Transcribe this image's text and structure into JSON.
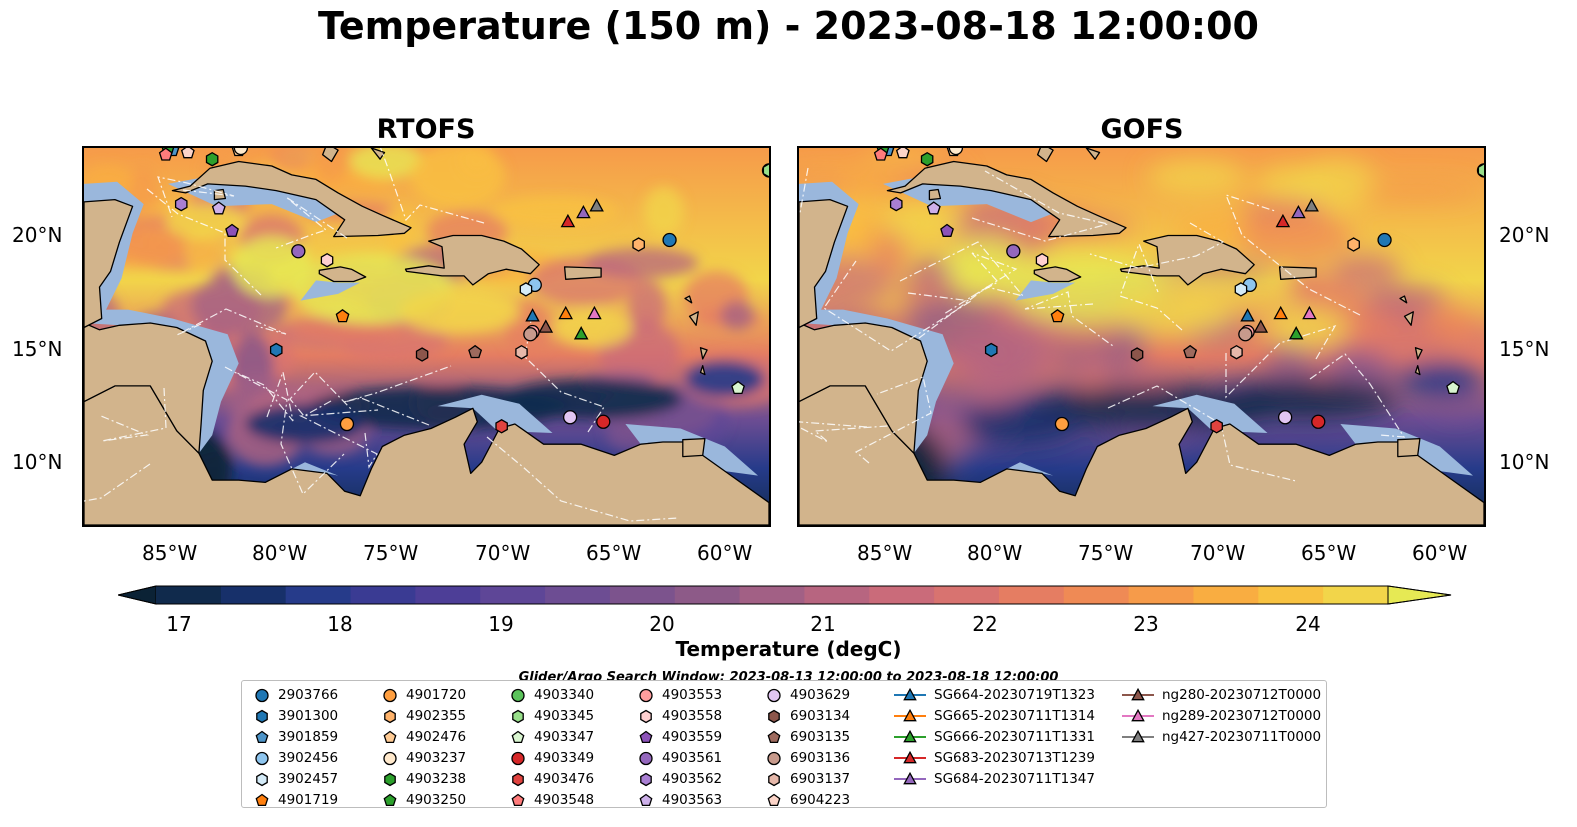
{
  "title": "Temperature (150 m) - 2023-08-18 12:00:00",
  "panels": [
    {
      "title": "RTOFS"
    },
    {
      "title": "GOFS"
    }
  ],
  "axes": {
    "lat_ticks": [
      "20°N",
      "15°N",
      "10°N"
    ],
    "lon_ticks": [
      "85°W",
      "80°W",
      "75°W",
      "70°W",
      "65°W",
      "60°W"
    ]
  },
  "colorbar": {
    "label": "Temperature (degC)",
    "ticks": [
      "17",
      "18",
      "19",
      "20",
      "21",
      "22",
      "23",
      "24"
    ],
    "range": [
      16.75,
      24.5
    ],
    "extend": "both",
    "colors": [
      "#0b2235",
      "#102a4c",
      "#17306a",
      "#263b8a",
      "#3a3b93",
      "#4d3e97",
      "#5e4697",
      "#6d4d93",
      "#7c538d",
      "#8d5a88",
      "#a26085",
      "#b76580",
      "#ca6b7a",
      "#d87370",
      "#e57d62",
      "#ef8a55",
      "#f69b4a",
      "#f9ad41",
      "#f8c241",
      "#f2d54a",
      "#e6e954"
    ]
  },
  "search_window": "Glider/Argo Search Window: 2023-08-13 12:00:00 to 2023-08-18 12:00:00",
  "legend": [
    {
      "label": "2903766",
      "marker": "circle",
      "color": "#1f77b4"
    },
    {
      "label": "3901300",
      "marker": "hexagon",
      "color": "#1f77b4"
    },
    {
      "label": "3901859",
      "marker": "pentagon",
      "color": "#4d94c8"
    },
    {
      "label": "3902456",
      "marker": "circle",
      "color": "#8ec5ee"
    },
    {
      "label": "3902457",
      "marker": "hexagon",
      "color": "#d4ebf8"
    },
    {
      "label": "4901719",
      "marker": "pentagon",
      "color": "#ff7f0e"
    },
    {
      "label": "4901720",
      "marker": "circle",
      "color": "#ff9f40"
    },
    {
      "label": "4902355",
      "marker": "hexagon",
      "color": "#ffb36b"
    },
    {
      "label": "4902476",
      "marker": "pentagon",
      "color": "#ffcb94"
    },
    {
      "label": "4903237",
      "marker": "circle",
      "color": "#ffe9cc"
    },
    {
      "label": "4903238",
      "marker": "hexagon",
      "color": "#2ca02c"
    },
    {
      "label": "4903250",
      "marker": "pentagon",
      "color": "#2ca02c"
    },
    {
      "label": "4903340",
      "marker": "circle",
      "color": "#5bc35b"
    },
    {
      "label": "4903345",
      "marker": "hexagon",
      "color": "#98df8a"
    },
    {
      "label": "4903347",
      "marker": "pentagon",
      "color": "#d9f5d0"
    },
    {
      "label": "4903349",
      "marker": "circle",
      "color": "#d62728"
    },
    {
      "label": "4903476",
      "marker": "hexagon",
      "color": "#e0433f"
    },
    {
      "label": "4903548",
      "marker": "pentagon",
      "color": "#ff7b7b"
    },
    {
      "label": "4903553",
      "marker": "circle",
      "color": "#ff9e9e"
    },
    {
      "label": "4903558",
      "marker": "hexagon",
      "color": "#ffd0d0"
    },
    {
      "label": "4903559",
      "marker": "pentagon",
      "color": "#8c52b8"
    },
    {
      "label": "4903561",
      "marker": "circle",
      "color": "#9467bd"
    },
    {
      "label": "4903562",
      "marker": "hexagon",
      "color": "#a97fd3"
    },
    {
      "label": "4903563",
      "marker": "pentagon",
      "color": "#cdb0ea"
    },
    {
      "label": "4903629",
      "marker": "circle",
      "color": "#e2c6f2"
    },
    {
      "label": "6903134",
      "marker": "hexagon",
      "color": "#8c564b"
    },
    {
      "label": "6903135",
      "marker": "pentagon",
      "color": "#9e6a5e"
    },
    {
      "label": "6903136",
      "marker": "circle",
      "color": "#c79a8c"
    },
    {
      "label": "6903137",
      "marker": "hexagon",
      "color": "#e6b8aa"
    },
    {
      "label": "6904223",
      "marker": "pentagon",
      "color": "#fcd4c8"
    },
    {
      "label": "SG664-20230719T1323",
      "marker": "triangle-line",
      "color": "#1f77b4"
    },
    {
      "label": "SG665-20230711T1314",
      "marker": "triangle-line",
      "color": "#ff7f0e"
    },
    {
      "label": "SG666-20230711T1331",
      "marker": "triangle-line",
      "color": "#2ca02c"
    },
    {
      "label": "SG683-20230713T1239",
      "marker": "triangle-line",
      "color": "#d62728"
    },
    {
      "label": "SG684-20230711T1347",
      "marker": "triangle-line",
      "color": "#9467bd"
    },
    {
      "label": "ng280-20230712T0000",
      "marker": "triangle-line",
      "color": "#8c564b"
    },
    {
      "label": "ng289-20230712T0000",
      "marker": "triangle-line",
      "color": "#e377c2"
    },
    {
      "label": "ng427-20230711T0000",
      "marker": "triangle-line",
      "color": "#7f7f7f"
    }
  ],
  "markers": [
    {
      "id": "2903766",
      "lon": -62.5,
      "lat": 19.7
    },
    {
      "id": "3901300",
      "lon": -80.3,
      "lat": 14.8
    },
    {
      "id": "3901859",
      "lon": -85.0,
      "lat": 23.7
    },
    {
      "id": "3902456",
      "lon": -68.6,
      "lat": 17.7
    },
    {
      "id": "3902457",
      "lon": -69.0,
      "lat": 17.5
    },
    {
      "id": "4901719",
      "lon": -77.3,
      "lat": 16.3
    },
    {
      "id": "4901720",
      "lon": -77.1,
      "lat": 11.5
    },
    {
      "id": "4902355",
      "lon": -63.9,
      "lat": 19.5
    },
    {
      "id": "4902476",
      "lon": -82.0,
      "lat": 23.7
    },
    {
      "id": "4903237",
      "lon": -81.9,
      "lat": 23.8
    },
    {
      "id": "4903238",
      "lon": -83.2,
      "lat": 23.3
    },
    {
      "id": "4903250",
      "lon": -85.2,
      "lat": 23.8
    },
    {
      "id": "4903340",
      "lon": -58.0,
      "lat": 22.8
    },
    {
      "id": "4903345",
      "lon": -58.0,
      "lat": 22.8
    },
    {
      "id": "4903347",
      "lon": -59.4,
      "lat": 13.1
    },
    {
      "id": "4903349",
      "lon": -65.5,
      "lat": 11.6
    },
    {
      "id": "4903476",
      "lon": -70.1,
      "lat": 11.4
    },
    {
      "id": "4903548",
      "lon": -85.3,
      "lat": 23.5
    },
    {
      "id": "4903553",
      "lon": -68.7,
      "lat": 15.6
    },
    {
      "id": "4903558",
      "lon": -78.0,
      "lat": 18.8
    },
    {
      "id": "4903559",
      "lon": -82.3,
      "lat": 20.1
    },
    {
      "id": "4903561",
      "lon": -79.3,
      "lat": 19.2
    },
    {
      "id": "4903562",
      "lon": -84.6,
      "lat": 21.3
    },
    {
      "id": "4903563",
      "lon": -82.9,
      "lat": 21.1
    },
    {
      "id": "4903629",
      "lon": -67.0,
      "lat": 11.8
    },
    {
      "id": "6903134",
      "lon": -73.7,
      "lat": 14.6
    },
    {
      "id": "6903135",
      "lon": -71.3,
      "lat": 14.7
    },
    {
      "id": "6903136",
      "lon": -68.8,
      "lat": 15.5
    },
    {
      "id": "6903137",
      "lon": -69.2,
      "lat": 14.7
    },
    {
      "id": "6904223",
      "lon": -84.3,
      "lat": 23.6
    },
    {
      "id": "SG664-20230719T1323",
      "lon": -68.7,
      "lat": 16.3
    },
    {
      "id": "SG665-20230711T1314",
      "lon": -67.2,
      "lat": 16.4
    },
    {
      "id": "SG666-20230711T1331",
      "lon": -66.5,
      "lat": 15.5
    },
    {
      "id": "SG683-20230713T1239",
      "lon": -67.1,
      "lat": 20.5
    },
    {
      "id": "SG684-20230711T1347",
      "lon": -66.4,
      "lat": 20.9
    },
    {
      "id": "ng280-20230712T0000",
      "lon": -68.1,
      "lat": 15.8
    },
    {
      "id": "ng289-20230712T0000",
      "lon": -65.9,
      "lat": 16.4
    },
    {
      "id": "ng427-20230711T0000",
      "lon": -65.8,
      "lat": 21.2
    }
  ],
  "map_extent": {
    "lon": [
      -89,
      -58
    ],
    "lat": [
      7,
      23.8
    ]
  }
}
